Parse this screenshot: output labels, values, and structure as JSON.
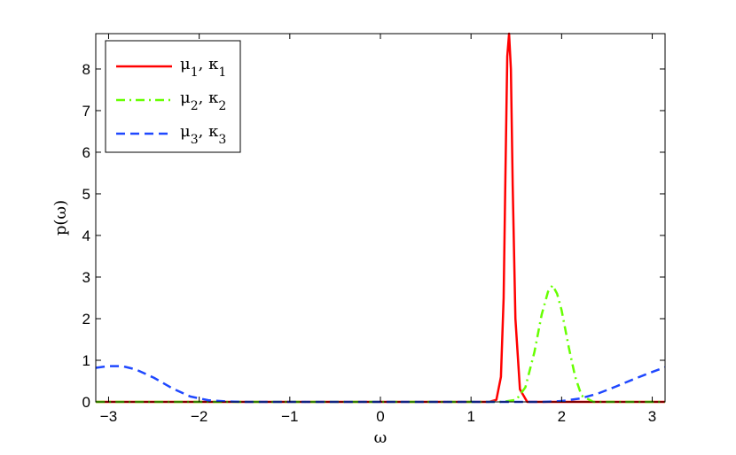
{
  "chart_data": {
    "type": "line",
    "title": "",
    "xlabel": "ω",
    "ylabel": "p(ω)",
    "xlim": [
      -3.14159,
      3.14159
    ],
    "ylim": [
      0,
      8.85
    ],
    "xticks": [
      -3,
      -2,
      -1,
      0,
      1,
      2,
      3
    ],
    "xtick_labels": [
      "−3",
      "−2",
      "−1",
      "0",
      "1",
      "2",
      "3"
    ],
    "yticks": [
      0,
      1,
      2,
      3,
      4,
      5,
      6,
      7,
      8
    ],
    "ytick_labels": [
      "0",
      "1",
      "2",
      "3",
      "4",
      "5",
      "6",
      "7",
      "8"
    ],
    "grid": false,
    "legend_position": "top-left",
    "series": [
      {
        "name": "μ1, κ1",
        "legend": {
          "main1": "μ",
          "sub1": "1",
          "main2": ", κ",
          "sub2": "1"
        },
        "color": "#ff0000",
        "style": "solid",
        "x": [
          -3.14,
          1.2,
          1.28,
          1.33,
          1.36,
          1.38,
          1.4,
          1.42,
          1.44,
          1.46,
          1.49,
          1.54,
          1.62,
          3.14
        ],
        "y": [
          0,
          0,
          0.05,
          0.6,
          2.5,
          5.5,
          8.3,
          8.85,
          8.0,
          5.2,
          2.0,
          0.3,
          0,
          0
        ]
      },
      {
        "name": "μ2, κ2",
        "legend": {
          "main1": "μ",
          "sub1": "2",
          "main2": ", κ",
          "sub2": "2"
        },
        "color": "#66ff00",
        "style": "dashdot",
        "x": [
          -3.14,
          1.35,
          1.5,
          1.6,
          1.7,
          1.78,
          1.85,
          1.9,
          1.95,
          2.0,
          2.08,
          2.15,
          2.22,
          2.35,
          3.14
        ],
        "y": [
          0,
          0,
          0.05,
          0.35,
          1.2,
          2.1,
          2.65,
          2.8,
          2.6,
          2.2,
          1.3,
          0.6,
          0.15,
          0,
          0
        ]
      },
      {
        "name": "μ3, κ3",
        "legend": {
          "main1": "μ",
          "sub1": "3",
          "main2": ", κ",
          "sub2": "3"
        },
        "color": "#1f48ff",
        "style": "dashed",
        "x": [
          -3.14,
          -3.0,
          -2.85,
          -2.7,
          -2.5,
          -2.3,
          -2.1,
          -1.9,
          -1.7,
          -1.5,
          -1.2,
          0,
          1.8,
          2.0,
          2.2,
          2.4,
          2.6,
          2.8,
          3.0,
          3.14
        ],
        "y": [
          0.82,
          0.86,
          0.86,
          0.78,
          0.58,
          0.33,
          0.13,
          0.04,
          0.01,
          0,
          0,
          0,
          0,
          0.02,
          0.08,
          0.2,
          0.37,
          0.55,
          0.72,
          0.83
        ]
      }
    ]
  }
}
